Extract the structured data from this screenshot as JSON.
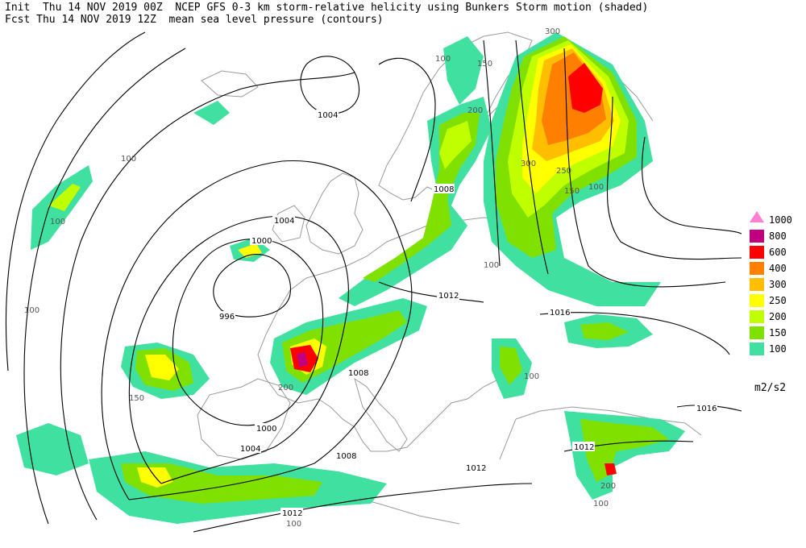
{
  "header": {
    "init_line": "Init  Thu 14 NOV 2019 00Z  NCEP GFS 0-3 km storm-relative helicity using Bunkers Storm motion (shaded)",
    "fcst_line": "Fcst Thu 14 NOV 2019 12Z  mean sea level pressure (contours)"
  },
  "legend": {
    "units": "m2/s2",
    "items": [
      {
        "label": "1000",
        "color": "#ff7fd0"
      },
      {
        "label": "800",
        "color": "#c0007f"
      },
      {
        "label": "600",
        "color": "#ff0000"
      },
      {
        "label": "400",
        "color": "#ff7f00"
      },
      {
        "label": "300",
        "color": "#ffbf00"
      },
      {
        "label": "250",
        "color": "#ffff00"
      },
      {
        "label": "200",
        "color": "#c0ff00"
      },
      {
        "label": "150",
        "color": "#80e000"
      },
      {
        "label": "100",
        "color": "#40e0a0"
      }
    ]
  },
  "contour_labels": [
    "1004",
    "1004",
    "1000",
    "996",
    "1000",
    "1004",
    "1008",
    "1008",
    "1008",
    "1012",
    "1012",
    "1012",
    "1016",
    "1016",
    "1012"
  ],
  "helicity_labels": [
    "100",
    "150",
    "200",
    "250",
    "300"
  ],
  "colors": {
    "shade_100": "#40e0a0",
    "shade_150": "#80e000",
    "shade_200": "#c0ff00",
    "shade_250": "#ffff00",
    "shade_300": "#ffbf00",
    "shade_400": "#ff7f00",
    "shade_600": "#ff0000",
    "shade_800": "#c0007f",
    "coast": "#999999",
    "contour": "#000000"
  }
}
